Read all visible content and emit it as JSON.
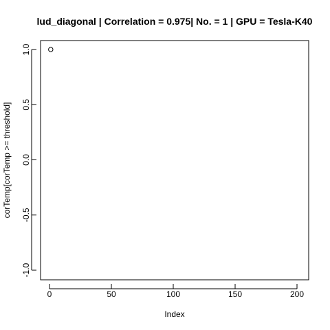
{
  "chart_data": {
    "type": "scatter",
    "title": "lud_diagonal | Correlation = 0.975| No. = 1 | GPU = Tesla-K40",
    "xlabel": "Index",
    "ylabel": "corTemp[corTemp >= threshold]",
    "xlim": [
      0,
      200
    ],
    "ylim": [
      -1.0,
      1.0
    ],
    "x_ticks": [
      0,
      50,
      100,
      150,
      200
    ],
    "y_ticks": [
      -1.0,
      -0.5,
      0.0,
      0.5,
      1.0
    ],
    "x_tick_labels": [
      "0",
      "50",
      "100",
      "150",
      "200"
    ],
    "y_tick_labels": [
      "-1.0",
      "-0.5",
      "0.0",
      "0.5",
      "1.0"
    ],
    "points": [
      {
        "x": 1,
        "y": 1.0
      }
    ],
    "grid": false,
    "legend": "none",
    "marker": "open-circle",
    "colors": {
      "background": "#ffffff",
      "foreground": "#000000"
    }
  }
}
